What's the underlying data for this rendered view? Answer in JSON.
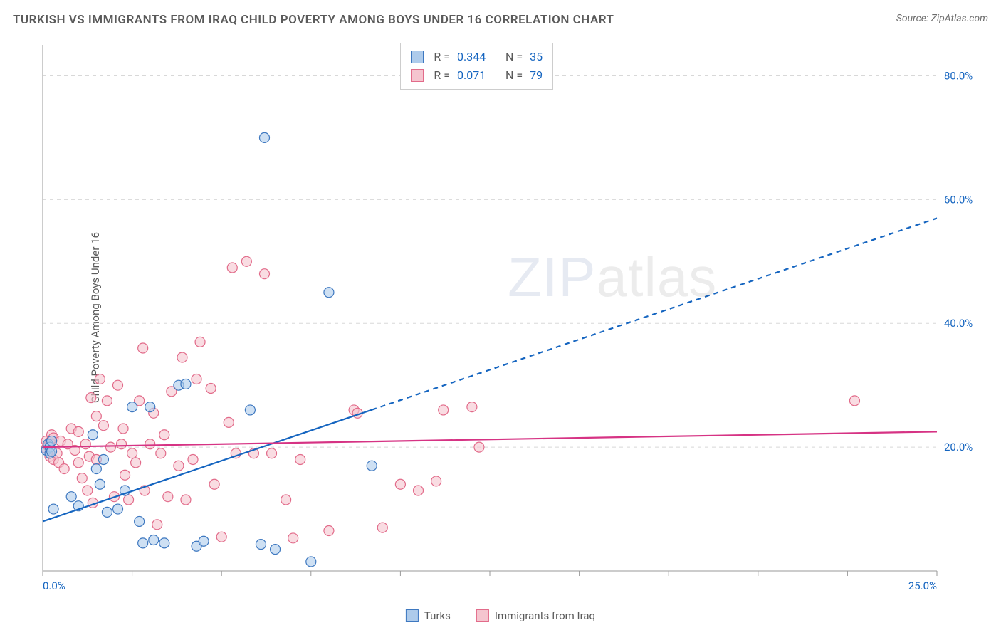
{
  "title": "TURKISH VS IMMIGRANTS FROM IRAQ CHILD POVERTY AMONG BOYS UNDER 16 CORRELATION CHART",
  "source_label": "Source: ",
  "source_name": "ZipAtlas.com",
  "y_axis_label": "Child Poverty Among Boys Under 16",
  "watermark_bold": "ZIP",
  "watermark_thin": "atlas",
  "chart": {
    "type": "scatter",
    "xlim": [
      0,
      25
    ],
    "ylim": [
      0,
      85
    ],
    "x_ticks": [
      0,
      2.5,
      5,
      7.5,
      10,
      12.5,
      15,
      17.5,
      20,
      22.5,
      25
    ],
    "y_ticks": [
      20,
      40,
      60,
      80
    ],
    "x_labels": {
      "0": "0.0%",
      "25": "25.0%"
    },
    "y_labels": {
      "20": "20.0%",
      "40": "40.0%",
      "60": "60.0%",
      "80": "80.0%"
    },
    "grid_color": "#d8d8d8",
    "axis_color": "#9a9a9a",
    "tick_label_color": "#1565c0",
    "background_color": "#ffffff",
    "marker_radius": 7,
    "marker_stroke_width": 1.2,
    "line_width": 2.2,
    "series": [
      {
        "id": "turks",
        "label": "Turks",
        "fill": "#aecbeb",
        "stroke": "#3e78c0",
        "line_color": "#1565c0",
        "R": "0.344",
        "N": "35",
        "trend": {
          "x1": 0,
          "y1": 8,
          "x2": 25,
          "y2": 57,
          "solid_until_x": 9.2
        },
        "points": [
          [
            0.1,
            19.5
          ],
          [
            0.15,
            20.5
          ],
          [
            0.2,
            20
          ],
          [
            0.2,
            19
          ],
          [
            0.25,
            21
          ],
          [
            0.25,
            19.3
          ],
          [
            0.3,
            10
          ],
          [
            0.8,
            12
          ],
          [
            1.0,
            10.5
          ],
          [
            1.4,
            22
          ],
          [
            1.5,
            16.5
          ],
          [
            1.6,
            14
          ],
          [
            1.7,
            18
          ],
          [
            1.8,
            9.5
          ],
          [
            2.1,
            10
          ],
          [
            2.3,
            13
          ],
          [
            2.5,
            26.5
          ],
          [
            2.7,
            8
          ],
          [
            2.8,
            4.5
          ],
          [
            3.0,
            26.5
          ],
          [
            3.1,
            5
          ],
          [
            3.4,
            4.5
          ],
          [
            3.8,
            30
          ],
          [
            4.0,
            30.2
          ],
          [
            4.3,
            4
          ],
          [
            4.5,
            4.8
          ],
          [
            5.8,
            26
          ],
          [
            6.1,
            4.3
          ],
          [
            6.2,
            70
          ],
          [
            6.5,
            3.5
          ],
          [
            7.5,
            1.5
          ],
          [
            8.0,
            45
          ],
          [
            9.2,
            17
          ]
        ]
      },
      {
        "id": "iraq",
        "label": "Immigrants from Iraq",
        "fill": "#f5c5cf",
        "stroke": "#e26b8a",
        "line_color": "#d63384",
        "R": "0.071",
        "N": "79",
        "trend": {
          "x1": 0,
          "y1": 20,
          "x2": 25,
          "y2": 22.5,
          "solid_until_x": 25
        },
        "points": [
          [
            0.1,
            21
          ],
          [
            0.1,
            19.8
          ],
          [
            0.15,
            20.2
          ],
          [
            0.2,
            18.5
          ],
          [
            0.2,
            20.8
          ],
          [
            0.25,
            22
          ],
          [
            0.3,
            18
          ],
          [
            0.3,
            21.5
          ],
          [
            0.4,
            19
          ],
          [
            0.45,
            17.5
          ],
          [
            0.5,
            21
          ],
          [
            0.6,
            16.5
          ],
          [
            0.7,
            20.5
          ],
          [
            0.8,
            23
          ],
          [
            0.9,
            19.5
          ],
          [
            1.0,
            17.5
          ],
          [
            1.0,
            22.5
          ],
          [
            1.1,
            15
          ],
          [
            1.2,
            20.5
          ],
          [
            1.25,
            13
          ],
          [
            1.3,
            18.5
          ],
          [
            1.35,
            28
          ],
          [
            1.4,
            11
          ],
          [
            1.5,
            18
          ],
          [
            1.5,
            25
          ],
          [
            1.6,
            31
          ],
          [
            1.7,
            23.5
          ],
          [
            1.8,
            27.5
          ],
          [
            1.9,
            20
          ],
          [
            2.0,
            12
          ],
          [
            2.1,
            30
          ],
          [
            2.2,
            20.5
          ],
          [
            2.25,
            23
          ],
          [
            2.3,
            15.5
          ],
          [
            2.4,
            11.5
          ],
          [
            2.5,
            19.0
          ],
          [
            2.6,
            17.5
          ],
          [
            2.7,
            27.5
          ],
          [
            2.8,
            36
          ],
          [
            2.85,
            13
          ],
          [
            3.0,
            20.5
          ],
          [
            3.1,
            25.5
          ],
          [
            3.2,
            7.5
          ],
          [
            3.3,
            19
          ],
          [
            3.4,
            22
          ],
          [
            3.5,
            12
          ],
          [
            3.6,
            29
          ],
          [
            3.8,
            17
          ],
          [
            3.9,
            34.5
          ],
          [
            4.0,
            11.5
          ],
          [
            4.2,
            18
          ],
          [
            4.3,
            31
          ],
          [
            4.4,
            37
          ],
          [
            4.7,
            29.5
          ],
          [
            4.8,
            14
          ],
          [
            5.0,
            5.5
          ],
          [
            5.2,
            24
          ],
          [
            5.3,
            49
          ],
          [
            5.4,
            19
          ],
          [
            5.7,
            50
          ],
          [
            5.9,
            19
          ],
          [
            6.2,
            48
          ],
          [
            6.4,
            19
          ],
          [
            6.8,
            11.5
          ],
          [
            7.0,
            5.3
          ],
          [
            7.2,
            18
          ],
          [
            8.0,
            6.5
          ],
          [
            8.7,
            26
          ],
          [
            8.8,
            25.5
          ],
          [
            9.5,
            7
          ],
          [
            10.0,
            14
          ],
          [
            10.5,
            13
          ],
          [
            11.0,
            14.5
          ],
          [
            11.2,
            26
          ],
          [
            12.0,
            26.5
          ],
          [
            12.2,
            20
          ],
          [
            22.7,
            27.5
          ]
        ]
      }
    ]
  },
  "stats_legend": {
    "R_label": "R =",
    "N_label": "N ="
  }
}
